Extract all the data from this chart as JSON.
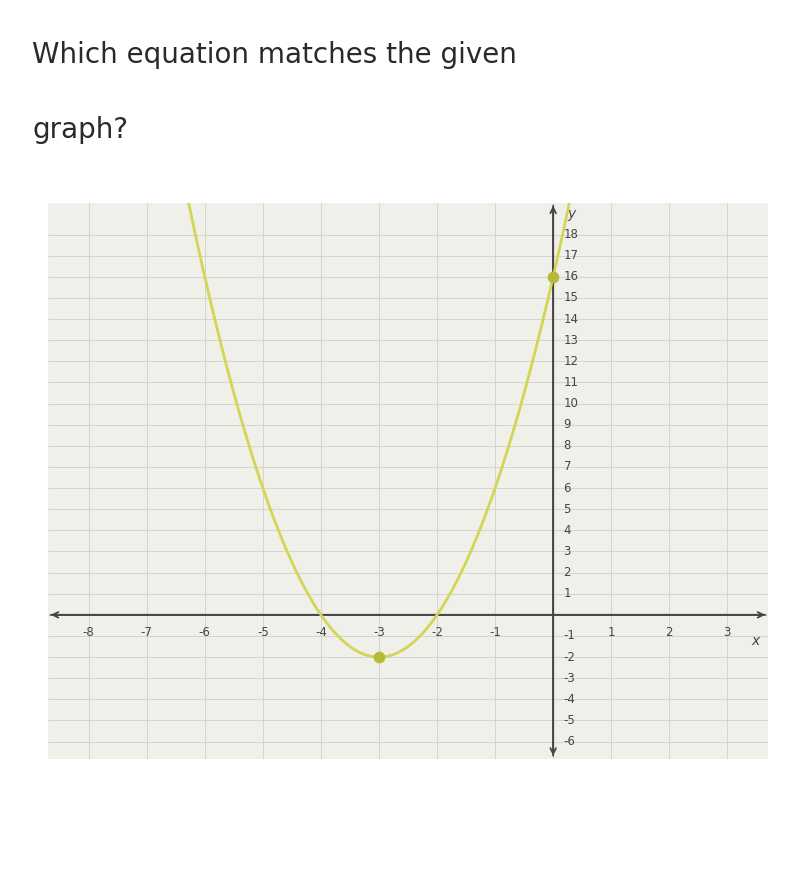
{
  "title_line1": "Which equation matches the given",
  "title_line2": "graph?",
  "title_fontsize": 20,
  "title_color": "#2a2a2a",
  "background_color": "#ffffff",
  "plot_bg_color": "#f0f0eb",
  "curve_color": "#d4d455",
  "curve_linewidth": 2.0,
  "dot_color": "#b8b83a",
  "dot_size": 55,
  "axis_color": "#444444",
  "grid_color": "#d0d0c8",
  "grid_linewidth": 0.6,
  "tick_color": "#444444",
  "tick_fontsize": 8.5,
  "xlim": [
    -8.7,
    3.7
  ],
  "ylim": [
    -6.8,
    19.5
  ],
  "xticks": [
    -8,
    -7,
    -6,
    -5,
    -4,
    -3,
    -2,
    -1,
    1,
    2,
    3
  ],
  "yticks": [
    -6,
    -5,
    -4,
    -3,
    -2,
    -1,
    1,
    2,
    3,
    4,
    5,
    6,
    7,
    8,
    9,
    10,
    11,
    12,
    13,
    14,
    15,
    16,
    17,
    18
  ],
  "xlabel": "x",
  "ylabel": "y",
  "highlight_points": [
    [
      -3,
      -2
    ],
    [
      0,
      16
    ]
  ],
  "x_range_start": -8.5,
  "x_range_end": 1.55,
  "func_a": 2,
  "func_b": 12,
  "func_c": 16
}
